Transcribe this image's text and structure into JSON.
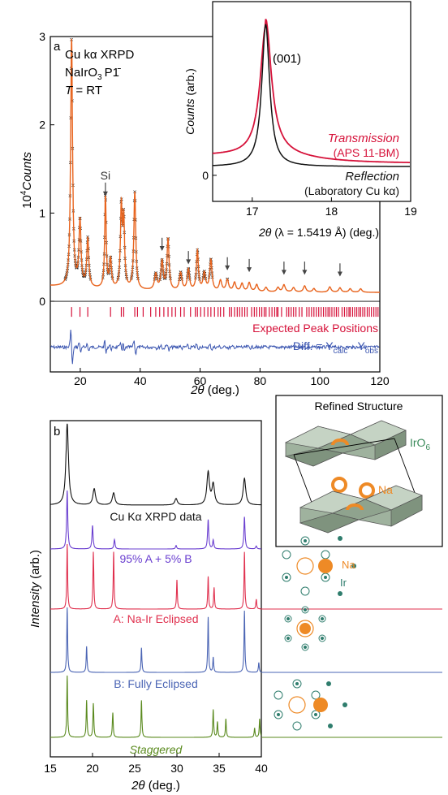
{
  "chart_data": [
    {
      "type": "line",
      "panel_label": "a",
      "xlabel_italic": "2θ",
      "xlabel_rest": " (deg.)",
      "ylabel_prefix": "10",
      "ylabel_exp": "4",
      "ylabel_word": "Counts",
      "xlim": [
        10,
        120
      ],
      "ylim": [
        -0.8,
        3.0
      ],
      "xticks": [
        20,
        40,
        60,
        80,
        100,
        120
      ],
      "yticks": [
        0,
        1,
        2,
        3
      ],
      "info_lines": [
        "Cu kα XRPD",
        "NaIrO",
        "T = RT"
      ],
      "info_formula_sub": "3",
      "info_formula_group": "P1̄",
      "info_T_italic": "T",
      "info_T_rest": " = RT",
      "si_label": "Si",
      "si_peak_x": 28.4,
      "si_peak_y": 1.18,
      "arrow_peaks_x": [
        47.3,
        56.1,
        69.1,
        76.4,
        88.0,
        94.9,
        106.7
      ],
      "arrow_peaks_y": [
        0.6,
        0.45,
        0.38,
        0.36,
        0.33,
        0.33,
        0.31
      ],
      "series": [
        {
          "name": "",
          "role": "observed",
          "color": "#000000",
          "peaks": [
            [
              17.1,
              2.8,
              0.38
            ],
            [
              19.9,
              0.74,
              0.4
            ],
            [
              22.5,
              0.55,
              0.4
            ],
            [
              28.4,
              1.05,
              0.3
            ],
            [
              30.1,
              0.32,
              0.4
            ],
            [
              33.7,
              0.9,
              0.35
            ],
            [
              34.5,
              0.75,
              0.35
            ],
            [
              38.2,
              1.1,
              0.38
            ],
            [
              45.2,
              0.18,
              0.5
            ],
            [
              47.3,
              0.32,
              0.45
            ],
            [
              49.3,
              0.58,
              0.4
            ],
            [
              53.5,
              0.2,
              0.5
            ],
            [
              56.1,
              0.24,
              0.45
            ],
            [
              59.1,
              0.45,
              0.4
            ],
            [
              61.4,
              0.2,
              0.5
            ],
            [
              63.6,
              0.35,
              0.45
            ],
            [
              66.8,
              0.12,
              0.5
            ],
            [
              69.1,
              0.13,
              0.5
            ],
            [
              71.5,
              0.1,
              0.5
            ],
            [
              74.0,
              0.09,
              0.5
            ],
            [
              76.4,
              0.1,
              0.5
            ],
            [
              78.9,
              0.08,
              0.5
            ],
            [
              82.0,
              0.05,
              0.5
            ],
            [
              86.0,
              0.05,
              0.5
            ],
            [
              88.0,
              0.08,
              0.5
            ],
            [
              91.2,
              0.05,
              0.5
            ],
            [
              94.9,
              0.07,
              0.5
            ],
            [
              98.0,
              0.04,
              0.5
            ],
            [
              103.3,
              0.06,
              0.5
            ],
            [
              106.7,
              0.05,
              0.5
            ],
            [
              110.1,
              0.04,
              0.5
            ],
            [
              113.6,
              0.04,
              0.5
            ]
          ],
          "baseline": 0.1
        },
        {
          "name": "",
          "role": "calculated",
          "color": "#e8641e"
        }
      ],
      "expected_label": "Expected Peak Positions",
      "expected_color": "#d6123a",
      "expected_y": -0.12,
      "expected_positions": [
        17.1,
        19.9,
        22.5,
        30.1,
        33.7,
        34.5,
        38.2,
        39.1,
        41.0,
        43.5,
        45.2,
        46.5,
        47.9,
        49.3,
        50.6,
        51.8,
        53.5,
        54.7,
        56.8,
        58.4,
        59.1,
        60.2,
        61.4,
        62.6,
        63.6,
        64.8,
        66.0,
        66.8,
        67.9,
        69.8,
        70.5,
        71.5,
        72.4,
        73.2,
        74.0,
        74.9,
        75.7,
        77.2,
        78.1,
        78.9,
        79.8,
        80.6,
        81.4,
        82.0,
        83.1,
        84.0,
        84.9,
        85.6,
        86.0,
        87.2,
        88.9,
        89.6,
        90.4,
        91.2,
        92.0,
        93.1,
        94.0,
        95.6,
        96.4,
        97.2,
        98.0,
        98.8,
        99.6,
        100.4,
        101.2,
        102.0,
        102.7,
        103.3,
        104.0,
        104.8,
        105.5,
        106.2,
        107.4,
        108.2,
        109.0,
        109.7,
        110.1,
        110.9,
        111.6,
        112.3,
        113.0,
        113.6,
        114.3,
        115.0,
        115.8,
        116.5,
        117.2,
        118.0,
        118.7,
        119.4
      ],
      "diff_label_prefix": "Diff. = Y",
      "diff_label_sub1": "calc",
      "diff_label_mid": " - Y",
      "diff_label_sub2": "obs",
      "diff_color": "#3a55b0",
      "diff_y": -0.52
    },
    {
      "type": "line",
      "role": "inset",
      "xlabel_italic": "2θ",
      "xlabel_rest": " (λ = 1.5419 Å) (deg.)",
      "ylabel_italic": "Counts",
      "ylabel_rest": " (arb.)",
      "xlim": [
        16.5,
        19.0
      ],
      "ylim": [
        -0.15,
        1.0
      ],
      "xticks": [
        17,
        18,
        19
      ],
      "yticks": [
        0
      ],
      "peak_label": "(001)",
      "series": [
        {
          "name": "Transmission",
          "sublabel": "(APS 11-BM)",
          "color": "#d6123a",
          "center": 17.17,
          "height": 0.74,
          "hwhm": 0.085,
          "offset": 0.07,
          "tail": 0.09
        },
        {
          "name": "Reflection",
          "sublabel": "(Laboratory Cu kα)",
          "color": "#111111",
          "center": 17.17,
          "height": 0.82,
          "hwhm": 0.06,
          "offset": 0.05,
          "tail": 0.0
        }
      ]
    },
    {
      "type": "line",
      "panel_label": "b",
      "xlabel_italic": "2θ",
      "xlabel_rest": " (deg.)",
      "ylabel_italic": "Intensity",
      "ylabel_rest": " (arb.)",
      "xlim": [
        15,
        40
      ],
      "xticks": [
        15,
        20,
        25,
        30,
        35,
        40
      ],
      "series": [
        {
          "name": "Cu Kα XRPD data",
          "color": "#111111",
          "offset": 5,
          "amp": 0.9,
          "width": 0.18,
          "peaks": [
            [
              17.0,
              1.0
            ],
            [
              20.2,
              0.2
            ],
            [
              22.5,
              0.15
            ],
            [
              29.9,
              0.08
            ],
            [
              33.7,
              0.4
            ],
            [
              34.3,
              0.25
            ],
            [
              38.0,
              0.33
            ]
          ]
        },
        {
          "name": "95% A + 5% B",
          "color": "#6a3fd0",
          "offset": 4,
          "amp": 0.9,
          "width": 0.08,
          "peaks": [
            [
              17.0,
              1.0
            ],
            [
              20.0,
              0.4
            ],
            [
              22.6,
              0.16
            ],
            [
              29.9,
              0.06
            ],
            [
              33.7,
              0.5
            ],
            [
              34.3,
              0.15
            ],
            [
              38.0,
              0.55
            ],
            [
              39.4,
              0.05
            ]
          ]
        },
        {
          "name": "A: Na-Ir Eclipsed",
          "color": "#e0304e",
          "offset": 3,
          "amp": 0.9,
          "width": 0.06,
          "peaks": [
            [
              17.0,
              1.0
            ],
            [
              20.1,
              0.88
            ],
            [
              22.5,
              0.88
            ],
            [
              30.0,
              0.45
            ],
            [
              33.7,
              0.5
            ],
            [
              34.4,
              0.33
            ],
            [
              38.0,
              0.88
            ],
            [
              39.4,
              0.15
            ]
          ]
        },
        {
          "name": "B: Fully Eclipsed",
          "color": "#4a64b4",
          "offset": 2,
          "amp": 0.9,
          "width": 0.06,
          "peaks": [
            [
              17.0,
              1.0
            ],
            [
              19.3,
              0.4
            ],
            [
              25.8,
              0.38
            ],
            [
              33.7,
              0.85
            ],
            [
              34.3,
              0.23
            ],
            [
              38.0,
              0.95
            ],
            [
              39.7,
              0.15
            ]
          ]
        },
        {
          "name": "Staggered",
          "name_italic": true,
          "color": "#5a8a1e",
          "offset": 1,
          "amp": 0.9,
          "width": 0.06,
          "peaks": [
            [
              17.0,
              1.0
            ],
            [
              19.3,
              0.6
            ],
            [
              20.1,
              0.55
            ],
            [
              22.4,
              0.4
            ],
            [
              25.8,
              0.6
            ],
            [
              34.3,
              0.45
            ],
            [
              34.8,
              0.25
            ],
            [
              35.8,
              0.3
            ],
            [
              39.2,
              0.15
            ],
            [
              39.8,
              0.3
            ]
          ]
        }
      ]
    }
  ],
  "structure_box": {
    "title": "Refined Structure",
    "octahedra_label": "IrO",
    "octahedra_sub": "6",
    "ion_label": "Na",
    "octahedra_color": "#b5c6b4",
    "ion_color": "#ee8a26"
  },
  "stacking_diagrams": {
    "na_label": "Na",
    "ir_label": "Ir",
    "na_color": "#ee8a26",
    "ir_color": "#2f7d6d"
  }
}
